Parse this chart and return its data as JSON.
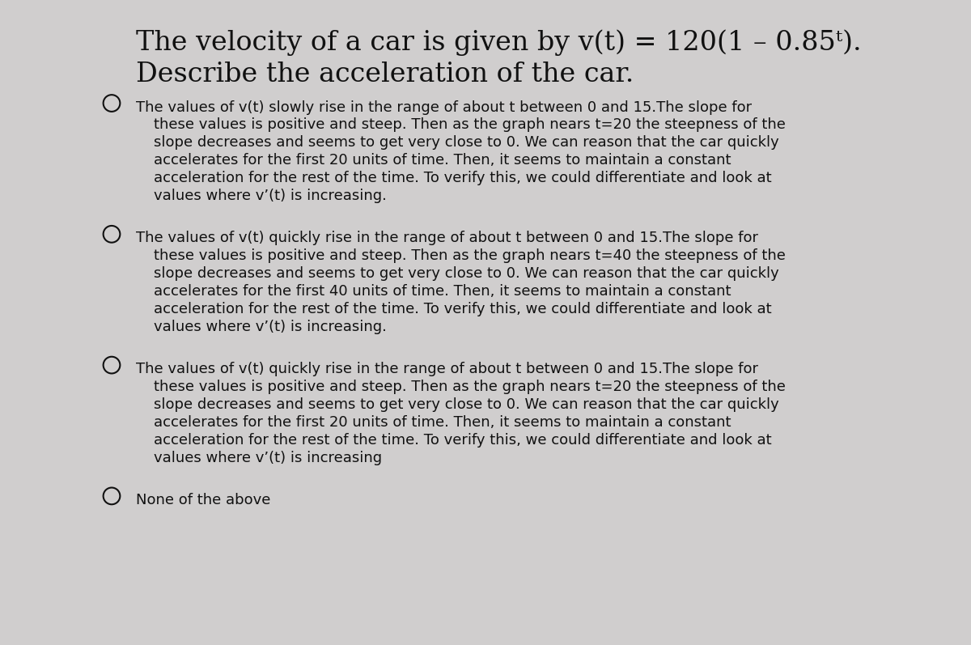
{
  "background_color": "#d0cece",
  "title_line1": "The velocity of a car is given by v(t) = 120(1 – 0.85ᵗ).",
  "title_line2": "Describe the acceleration of the car.",
  "title_fontsize": 24,
  "options": [
    {
      "lines": [
        "The values of v(t) slowly rise in the range of about t between 0 and 15.The slope for",
        "these values is positive and steep. Then as the graph nears t=20 the steepness of the",
        "slope decreases and seems to get very close to 0. We can reason that the car quickly",
        "accelerates for the first 20 units of time. Then, it seems to maintain a constant",
        "acceleration for the rest of the time. To verify this, we could differentiate and look at",
        "values where v’(t) is increasing."
      ]
    },
    {
      "lines": [
        "The values of v(t) quickly rise in the range of about t between 0 and 15.The slope for",
        "these values is positive and steep. Then as the graph nears t=40 the steepness of the",
        "slope decreases and seems to get very close to 0. We can reason that the car quickly",
        "accelerates for the first 40 units of time. Then, it seems to maintain a constant",
        "acceleration for the rest of the time. To verify this, we could differentiate and look at",
        "values where v’(t) is increasing."
      ]
    },
    {
      "lines": [
        "The values of v(t) quickly rise in the range of about t between 0 and 15.The slope for",
        "these values is positive and steep. Then as the graph nears t=20 the steepness of the",
        "slope decreases and seems to get very close to 0. We can reason that the car quickly",
        "accelerates for the first 20 units of time. Then, it seems to maintain a constant",
        "acceleration for the rest of the time. To verify this, we could differentiate and look at",
        "values where v’(t) is increasing"
      ]
    },
    {
      "lines": [
        "None of the above"
      ]
    }
  ],
  "text_color": "#111111",
  "option_fontsize": 13,
  "circle_color": "#111111",
  "fig_width": 12.0,
  "fig_height": 7.97,
  "dpi": 100
}
